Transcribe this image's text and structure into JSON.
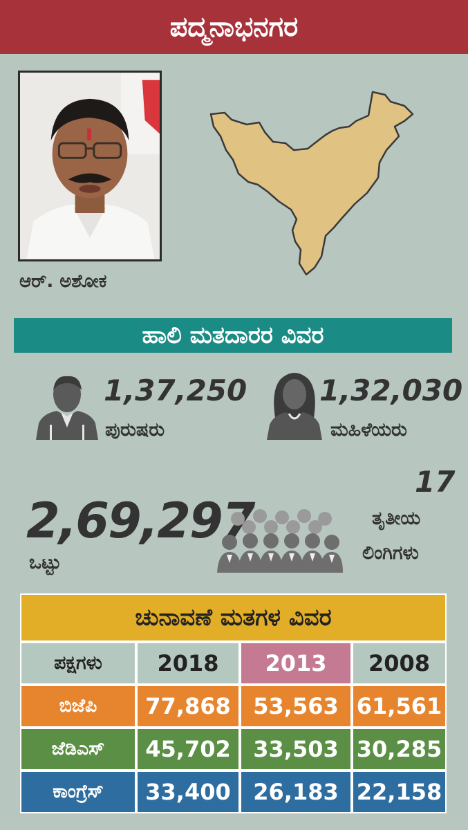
{
  "constituency": "ಪದ್ಮನಾಭನಗರ",
  "candidate": {
    "name": "ಆರ್. ಅಶೋಕ"
  },
  "voters": {
    "heading": "ಹಾಲಿ ಮತದಾರರ ವಿವರ",
    "male": {
      "count": "1,37,250",
      "label": "ಪುರುಷರು",
      "icon": "male-user-icon"
    },
    "female": {
      "count": "1,32,030",
      "label": "ಮಹಿಳೆಯರು",
      "icon": "female-user-icon"
    },
    "total": {
      "count": "2,69,297",
      "label": "ಒಟ್ಟು",
      "icon": "crowd-icon"
    },
    "third_gender": {
      "count": "17",
      "label_line1": "ತೃತೀಯ",
      "label_line2": "ಲಿಂಗಿಗಳು"
    }
  },
  "election_table": {
    "heading": "ಚುನಾವಣೆ ಮತಗಳ ವಿವರ",
    "columns": [
      "ಪಕ್ಷಗಳು",
      "2018",
      "2013",
      "2008"
    ],
    "rows": [
      {
        "party": "ಬಿಜೆಪಿ",
        "values": [
          "77,868",
          "53,563",
          "61,561"
        ]
      },
      {
        "party": "ಜೆಡಿಎಸ್",
        "values": [
          "45,702",
          "33,503",
          "30,285"
        ]
      },
      {
        "party": "ಕಾಂಗ್ರೆಸ್",
        "values": [
          "33,400",
          "26,183",
          "22,158"
        ]
      }
    ]
  },
  "colors": {
    "background": "#b7c7bf",
    "title_bar": "#a8323a",
    "voters_bar": "#1a8c85",
    "table_heading": "#e2ae27",
    "highlight_year": "#c47a92",
    "bjp": "#e7852f",
    "jds": "#5b8f45",
    "congress": "#2e6d9f",
    "map_fill": "#e0c383"
  }
}
